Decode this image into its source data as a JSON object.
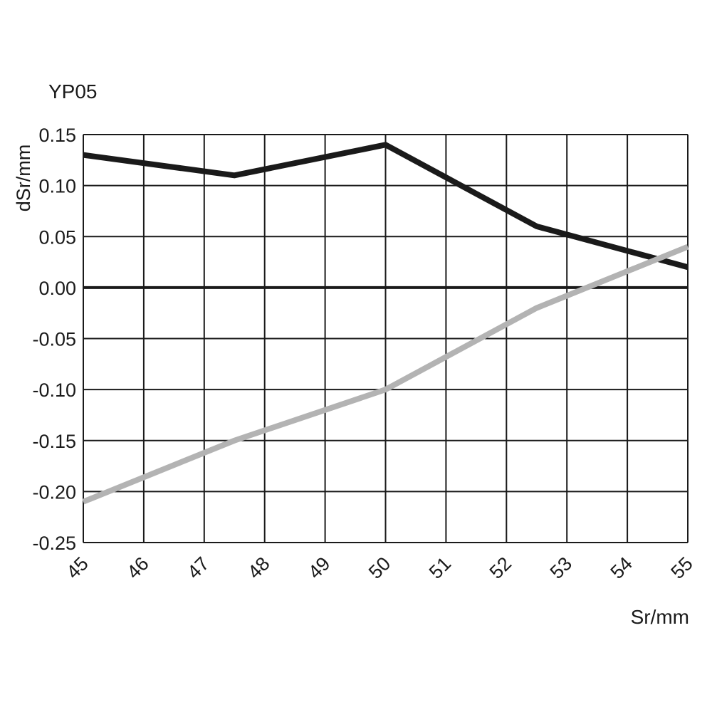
{
  "chart_data": {
    "type": "line",
    "title": "YP05",
    "xlabel": "Sr/mm",
    "ylabel": "dSr/mm",
    "xlim": [
      45,
      55
    ],
    "ylim": [
      -0.25,
      0.15
    ],
    "xticks": [
      "45",
      "46",
      "47",
      "48",
      "49",
      "50",
      "51",
      "52",
      "53",
      "54",
      "55"
    ],
    "yticks": [
      "0.15",
      "0.10",
      "0.05",
      "0.00",
      "-0.05",
      "-0.10",
      "-0.15",
      "-0.20",
      "-0.25"
    ],
    "grid": true,
    "series": [
      {
        "name": "black",
        "color": "#1a1a1a",
        "x": [
          45,
          47.5,
          50,
          52.5,
          55
        ],
        "y": [
          0.13,
          0.11,
          0.14,
          0.06,
          0.02
        ]
      },
      {
        "name": "gray",
        "color": "#b3b3b3",
        "x": [
          45,
          47.5,
          50,
          52.5,
          55
        ],
        "y": [
          -0.21,
          -0.15,
          -0.1,
          -0.02,
          0.04
        ]
      }
    ]
  }
}
